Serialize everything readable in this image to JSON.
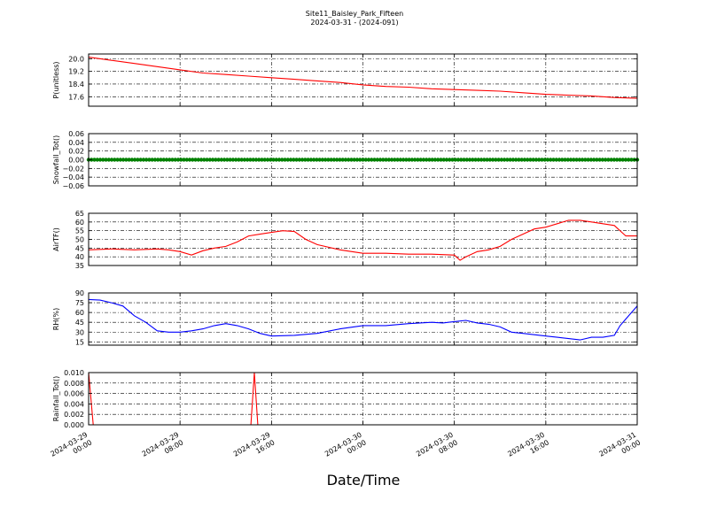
{
  "figure": {
    "title": "Site11_Baisley_Park_Fifteen",
    "subtitle": "2024-03-31 - (2024-091)",
    "xlabel": "Date/Time"
  },
  "chart_data": [
    {
      "type": "line",
      "ylabel": "P(unitless)",
      "color": "#ff0000",
      "ylim": [
        17.0,
        20.3
      ],
      "yticks": [
        "20.0",
        "19.2",
        "18.4",
        "17.6"
      ],
      "ytick_values": [
        20.0,
        19.2,
        18.4,
        17.6
      ],
      "grid": true,
      "series": [
        {
          "x": [
            0,
            2,
            4,
            6,
            8,
            10,
            12,
            14,
            16,
            18,
            20,
            22,
            24,
            26,
            28,
            30,
            32,
            34,
            36,
            38,
            40,
            42,
            44,
            46,
            48
          ],
          "values": [
            20.1,
            19.9,
            19.7,
            19.5,
            19.3,
            19.1,
            19.0,
            18.9,
            18.8,
            18.7,
            18.6,
            18.5,
            18.35,
            18.25,
            18.2,
            18.1,
            18.05,
            18.0,
            17.95,
            17.85,
            17.75,
            17.7,
            17.65,
            17.55,
            17.5
          ]
        }
      ]
    },
    {
      "type": "scatter",
      "ylabel": "Snowfall_Tot()",
      "color": "#008000",
      "ylim": [
        -0.06,
        0.06
      ],
      "yticks": [
        "0.06",
        "0.04",
        "0.02",
        "0.00",
        "−0.02",
        "−0.04",
        "−0.06"
      ],
      "ytick_values": [
        0.06,
        0.04,
        0.02,
        0.0,
        -0.02,
        -0.04,
        -0.06
      ],
      "grid": true,
      "series": [
        {
          "x_range": [
            0,
            48
          ],
          "value": 0.0
        }
      ]
    },
    {
      "type": "line",
      "ylabel": "AirTF()",
      "color": "#ff0000",
      "ylim": [
        35,
        65
      ],
      "yticks": [
        "65",
        "60",
        "55",
        "50",
        "45",
        "40",
        "35"
      ],
      "ytick_values": [
        65,
        60,
        55,
        50,
        45,
        40,
        35
      ],
      "grid": true,
      "series": [
        {
          "x": [
            0,
            2,
            4,
            6,
            7,
            8,
            9,
            10,
            11,
            12,
            13,
            14,
            15,
            16,
            17,
            18,
            19,
            20,
            22,
            24,
            26,
            28,
            30,
            32,
            32.5,
            33,
            34,
            35,
            36,
            37,
            38,
            39,
            40,
            41,
            42,
            43,
            44,
            45,
            46,
            47,
            48
          ],
          "values": [
            44,
            44.5,
            44,
            44.5,
            44,
            43,
            41,
            43.5,
            45,
            46,
            48.5,
            52,
            53,
            54,
            55,
            54.5,
            50,
            47,
            44,
            42,
            42,
            41.5,
            41.5,
            41,
            38,
            40,
            43,
            44,
            46,
            50,
            53,
            56,
            57,
            59,
            61,
            61,
            60,
            59,
            58,
            52,
            52
          ]
        }
      ]
    },
    {
      "type": "line",
      "ylabel": "RH(%)",
      "color": "#0000ff",
      "ylim": [
        10,
        90
      ],
      "yticks": [
        "90",
        "75",
        "60",
        "45",
        "30",
        "15"
      ],
      "ytick_values": [
        90,
        75,
        60,
        45,
        30,
        15
      ],
      "grid": true,
      "series": [
        {
          "x": [
            0,
            1,
            2,
            3,
            4,
            5,
            6,
            7,
            8,
            9,
            10,
            11,
            12,
            13,
            14,
            15,
            16,
            18,
            20,
            22,
            24,
            26,
            28,
            30,
            31,
            32,
            33,
            34,
            35,
            36,
            37,
            38,
            39,
            40,
            41,
            42,
            43,
            44,
            45,
            46,
            46.5,
            47,
            48
          ],
          "values": [
            80,
            79,
            75,
            70,
            55,
            45,
            32,
            30,
            30,
            32,
            35,
            40,
            43,
            40,
            35,
            28,
            24,
            25,
            28,
            35,
            40,
            40,
            43,
            45,
            44,
            46,
            48,
            44,
            42,
            38,
            30,
            28,
            26,
            24,
            22,
            20,
            18,
            22,
            22,
            25,
            40,
            50,
            70
          ]
        }
      ]
    },
    {
      "type": "line",
      "ylabel": "Rainfall_Tot()",
      "color": "#ff0000",
      "ylim": [
        0.0,
        0.01
      ],
      "yticks": [
        "0.010",
        "0.008",
        "0.006",
        "0.004",
        "0.002",
        "0.000"
      ],
      "ytick_values": [
        0.01,
        0.008,
        0.006,
        0.004,
        0.002,
        0.0
      ],
      "grid": true,
      "series": [
        {
          "x": [
            0,
            0.4,
            14.2,
            14.5,
            14.8,
            48
          ],
          "values": [
            0.01,
            0.0,
            0.0,
            0.01,
            0.0,
            0.0
          ]
        }
      ]
    }
  ],
  "x_axis": {
    "range": [
      0,
      48
    ],
    "ticks": [
      0,
      8,
      16,
      24,
      32,
      40,
      48
    ],
    "tick_labels": [
      [
        "2024-03-29",
        "00:00"
      ],
      [
        "2024-03-29",
        "08:00"
      ],
      [
        "2024-03-29",
        "16:00"
      ],
      [
        "2024-03-30",
        "00:00"
      ],
      [
        "2024-03-30",
        "08:00"
      ],
      [
        "2024-03-30",
        "16:00"
      ],
      [
        "2024-03-31",
        "00:00"
      ]
    ]
  }
}
